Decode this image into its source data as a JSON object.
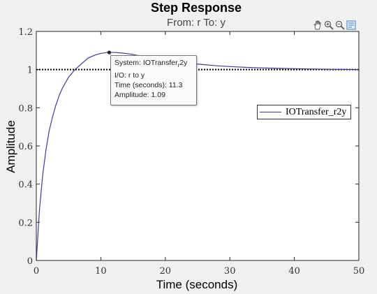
{
  "figure": {
    "title": "Step Response",
    "subtitle": "From: r  To: y"
  },
  "toolbar": {
    "items": [
      "hand-pan-icon",
      "zoom-in-icon",
      "zoom-out-icon",
      "data-cursor-icon"
    ]
  },
  "datatip": {
    "system_prefix": "System: IOTransfer",
    "system_sub": "r",
    "system_suffix": "2y",
    "io": "I/O: r to y",
    "time": "Time (seconds): 11.3",
    "amplitude": "Amplitude: 1.09",
    "point": [
      11.3,
      1.09
    ]
  },
  "legend": {
    "label": "IOTransfer_r2y",
    "line_color": "#3d3d99"
  },
  "chart_data": {
    "type": "line",
    "title": "Step Response",
    "subtitle": "From: r  To: y",
    "xlabel": "Time (seconds)",
    "ylabel": "Amplitude",
    "xlim": [
      0,
      50
    ],
    "ylim": [
      0,
      1.2
    ],
    "xticks": [
      0,
      10,
      20,
      30,
      40,
      50
    ],
    "yticks": [
      0,
      0.2,
      0.4,
      0.6,
      0.8,
      1,
      1.2
    ],
    "xtick_labels": [
      "0",
      "10",
      "20",
      "30",
      "40",
      "50"
    ],
    "ytick_labels": [
      "0",
      "0.2",
      "0.4",
      "0.6",
      "0.8",
      "1",
      "1.2"
    ],
    "grid": false,
    "legend_position": "top-right",
    "reference_line": {
      "y": 1,
      "style": "dotted",
      "color": "#000000"
    },
    "series": [
      {
        "name": "IOTransfer_r2y",
        "color": "#3d3d99",
        "x": [
          0,
          0.5,
          1,
          1.5,
          2,
          2.5,
          3,
          3.5,
          4,
          4.5,
          5,
          6,
          7,
          8,
          9,
          10,
          11,
          11.3,
          12,
          13,
          14,
          15,
          16,
          17,
          18,
          20,
          22,
          25,
          28,
          30,
          33,
          35,
          38,
          40,
          43,
          45,
          48,
          50
        ],
        "y": [
          0,
          0.27,
          0.45,
          0.58,
          0.68,
          0.75,
          0.81,
          0.86,
          0.9,
          0.93,
          0.96,
          1.0,
          1.03,
          1.06,
          1.075,
          1.085,
          1.09,
          1.09,
          1.09,
          1.088,
          1.084,
          1.079,
          1.072,
          1.066,
          1.06,
          1.05,
          1.04,
          1.029,
          1.02,
          1.016,
          1.011,
          1.009,
          1.006,
          1.005,
          1.003,
          1.002,
          1.001,
          1.0
        ]
      }
    ]
  }
}
